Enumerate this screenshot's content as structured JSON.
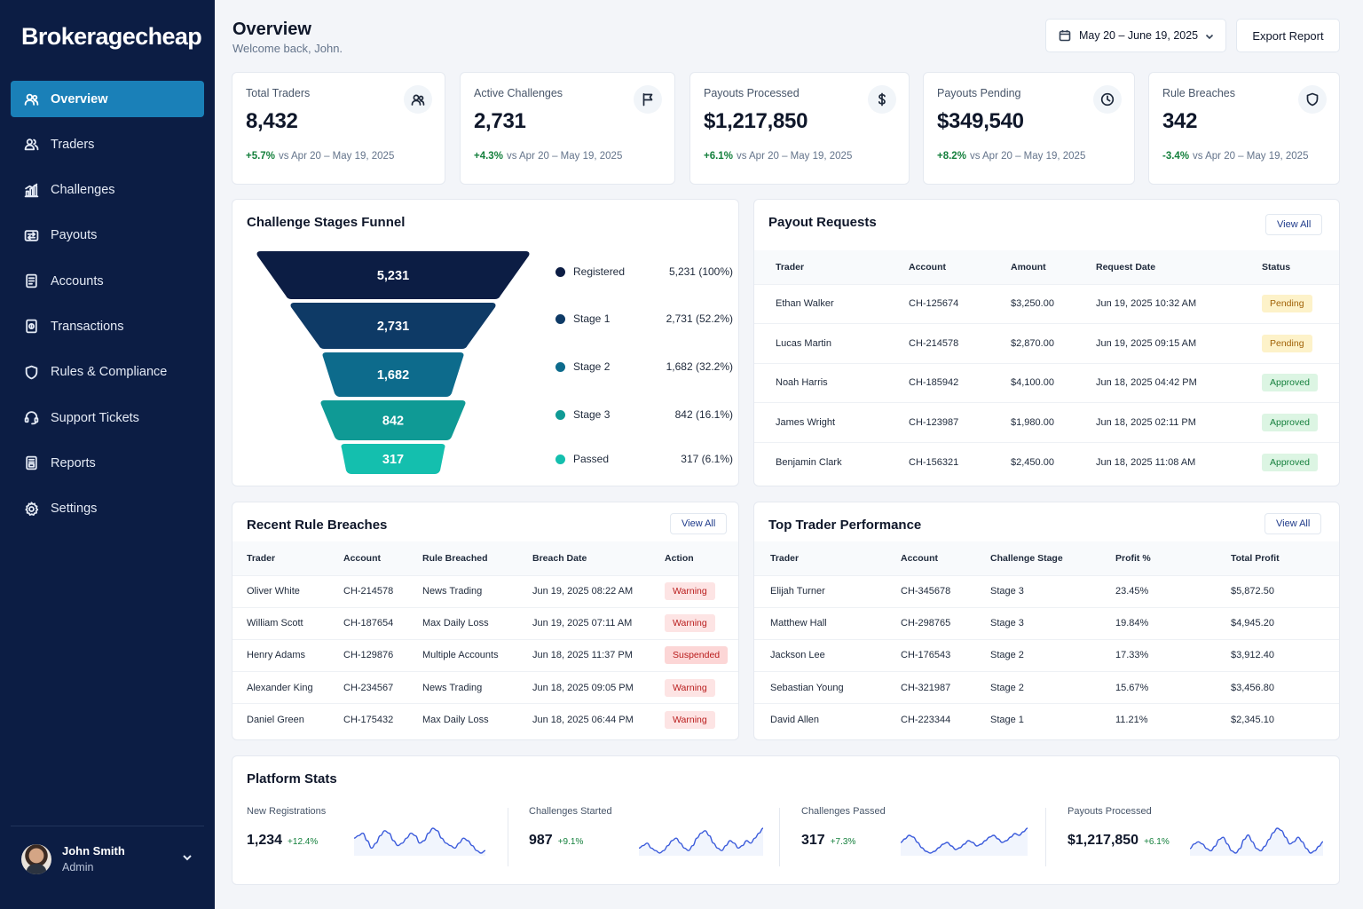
{
  "brand": "Brokeragecheap",
  "nav": [
    {
      "label": "Overview",
      "icon": "users-icon",
      "active": true
    },
    {
      "label": "Traders",
      "icon": "user-group-icon"
    },
    {
      "label": "Challenges",
      "icon": "bar-chart-icon"
    },
    {
      "label": "Payouts",
      "icon": "transfer-icon"
    },
    {
      "label": "Accounts",
      "icon": "document-icon"
    },
    {
      "label": "Transactions",
      "icon": "receipt-icon"
    },
    {
      "label": "Rules & Compliance",
      "icon": "shield-icon"
    },
    {
      "label": "Support Tickets",
      "icon": "support-icon"
    },
    {
      "label": "Reports",
      "icon": "report-icon"
    },
    {
      "label": "Settings",
      "icon": "gear-icon"
    }
  ],
  "user": {
    "name": "John Smith",
    "role": "Admin"
  },
  "header": {
    "title": "Overview",
    "subtitle": "Welcome back, John.",
    "date_range": "May 20 – June 19, 2025",
    "export_label": "Export Report"
  },
  "kpis": [
    {
      "label": "Total Traders",
      "value": "8,432",
      "delta": "+5.7%",
      "compare": "vs Apr 20 – May 19, 2025",
      "icon": "users-icon"
    },
    {
      "label": "Active Challenges",
      "value": "2,731",
      "delta": "+4.3%",
      "compare": "vs Apr 20 – May 19, 2025",
      "icon": "flag-icon"
    },
    {
      "label": "Payouts Processed",
      "value": "$1,217,850",
      "delta": "+6.1%",
      "compare": "vs Apr 20 – May 19, 2025",
      "icon": "dollar-icon"
    },
    {
      "label": "Payouts Pending",
      "value": "$349,540",
      "delta": "+8.2%",
      "compare": "vs Apr 20 – May 19, 2025",
      "icon": "clock-icon"
    },
    {
      "label": "Rule Breaches",
      "value": "342",
      "delta": "-3.4%",
      "compare": "vs Apr 20 – May 19, 2025",
      "icon": "shield-icon"
    }
  ],
  "funnel": {
    "title": "Challenge Stages Funnel",
    "stages": [
      {
        "name": "Registered",
        "value": "5,231",
        "pct": "5,231 (100%)",
        "color": "#0c1d44"
      },
      {
        "name": "Stage 1",
        "value": "2,731",
        "pct": "2,731 (52.2%)",
        "color": "#0e3a66"
      },
      {
        "name": "Stage 2",
        "value": "1,682",
        "pct": "1,682 (32.2%)",
        "color": "#0d6b8c"
      },
      {
        "name": "Stage 3",
        "value": "842",
        "pct": "842 (16.1%)",
        "color": "#0f9a95"
      },
      {
        "name": "Passed",
        "value": "317",
        "pct": "317 (6.1%)",
        "color": "#14bfae"
      }
    ]
  },
  "payouts": {
    "title": "Payout Requests",
    "view_all": "View All",
    "columns": [
      "Trader",
      "Account",
      "Amount",
      "Request Date",
      "Status"
    ],
    "rows": [
      {
        "trader": "Ethan Walker",
        "account": "CH-125674",
        "amount": "$3,250.00",
        "date": "Jun 19, 2025 10:32 AM",
        "status": "Pending"
      },
      {
        "trader": "Lucas Martin",
        "account": "CH-214578",
        "amount": "$2,870.00",
        "date": "Jun 19, 2025 09:15 AM",
        "status": "Pending"
      },
      {
        "trader": "Noah Harris",
        "account": "CH-185942",
        "amount": "$4,100.00",
        "date": "Jun 18, 2025 04:42 PM",
        "status": "Approved"
      },
      {
        "trader": "James Wright",
        "account": "CH-123987",
        "amount": "$1,980.00",
        "date": "Jun 18, 2025 02:11 PM",
        "status": "Approved"
      },
      {
        "trader": "Benjamin Clark",
        "account": "CH-156321",
        "amount": "$2,450.00",
        "date": "Jun 18, 2025 11:08 AM",
        "status": "Approved"
      }
    ]
  },
  "breaches": {
    "title": "Recent Rule Breaches",
    "view_all": "View All",
    "columns": [
      "Trader",
      "Account",
      "Rule Breached",
      "Breach Date",
      "Action"
    ],
    "rows": [
      {
        "trader": "Oliver White",
        "account": "CH-214578",
        "rule": "News Trading",
        "date": "Jun 19, 2025 08:22 AM",
        "action": "Warning"
      },
      {
        "trader": "William Scott",
        "account": "CH-187654",
        "rule": "Max Daily Loss",
        "date": "Jun 19, 2025 07:11 AM",
        "action": "Warning"
      },
      {
        "trader": "Henry Adams",
        "account": "CH-129876",
        "rule": "Multiple Accounts",
        "date": "Jun 18, 2025 11:37 PM",
        "action": "Suspended"
      },
      {
        "trader": "Alexander King",
        "account": "CH-234567",
        "rule": "News Trading",
        "date": "Jun 18, 2025 09:05 PM",
        "action": "Warning"
      },
      {
        "trader": "Daniel Green",
        "account": "CH-175432",
        "rule": "Max Daily Loss",
        "date": "Jun 18, 2025 06:44 PM",
        "action": "Warning"
      }
    ]
  },
  "performance": {
    "title": "Top Trader Performance",
    "view_all": "View All",
    "columns": [
      "Trader",
      "Account",
      "Challenge Stage",
      "Profit %",
      "Total Profit"
    ],
    "rows": [
      {
        "trader": "Elijah Turner",
        "account": "CH-345678",
        "stage": "Stage 3",
        "profit_pct": "23.45%",
        "total": "$5,872.50"
      },
      {
        "trader": "Matthew Hall",
        "account": "CH-298765",
        "stage": "Stage 3",
        "profit_pct": "19.84%",
        "total": "$4,945.20"
      },
      {
        "trader": "Jackson Lee",
        "account": "CH-176543",
        "stage": "Stage 2",
        "profit_pct": "17.33%",
        "total": "$3,912.40"
      },
      {
        "trader": "Sebastian Young",
        "account": "CH-321987",
        "stage": "Stage 2",
        "profit_pct": "15.67%",
        "total": "$3,456.80"
      },
      {
        "trader": "David Allen",
        "account": "CH-223344",
        "stage": "Stage 1",
        "profit_pct": "11.21%",
        "total": "$2,345.10"
      }
    ]
  },
  "platform": {
    "title": "Platform Stats",
    "stats": [
      {
        "label": "New Registrations",
        "value": "1,234",
        "delta": "+12.4%",
        "spark": [
          14,
          15,
          16,
          13,
          10,
          12,
          15,
          17,
          16,
          13,
          11,
          12,
          14,
          16,
          15,
          12,
          13,
          16,
          18,
          17,
          14,
          12,
          11,
          10,
          12,
          14,
          13,
          11,
          9,
          8,
          9
        ]
      },
      {
        "label": "Challenges Started",
        "value": "987",
        "delta": "+9.1%",
        "spark": [
          10,
          11,
          12,
          10,
          9,
          8,
          9,
          11,
          13,
          14,
          12,
          10,
          9,
          11,
          14,
          16,
          17,
          15,
          12,
          10,
          9,
          11,
          13,
          12,
          10,
          11,
          13,
          12,
          14,
          16,
          18
        ]
      },
      {
        "label": "Challenges Passed",
        "value": "317",
        "delta": "+7.3%",
        "spark": [
          12,
          14,
          16,
          15,
          12,
          9,
          7,
          6,
          7,
          9,
          11,
          12,
          10,
          8,
          9,
          11,
          13,
          12,
          10,
          11,
          13,
          15,
          16,
          14,
          12,
          13,
          15,
          17,
          16,
          18,
          20
        ]
      },
      {
        "label": "Payouts Processed",
        "value": "$1,217,850",
        "delta": "+6.1%",
        "spark": [
          10,
          12,
          13,
          12,
          10,
          9,
          11,
          14,
          15,
          12,
          9,
          8,
          10,
          14,
          16,
          13,
          10,
          9,
          11,
          14,
          17,
          19,
          18,
          15,
          12,
          13,
          15,
          13,
          10,
          8,
          9,
          11,
          13
        ]
      }
    ]
  }
}
